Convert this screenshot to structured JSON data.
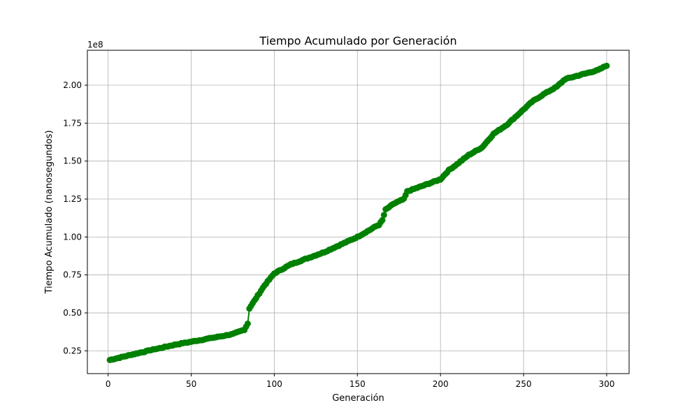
{
  "chart_data": {
    "type": "line",
    "title": "Tiempo Acumulado por Generación",
    "xlabel": "Generación",
    "ylabel": "Tiempo Acumulado (nanosegundos)",
    "y_multiplier_label": "1e8",
    "y_multiplier": 100000000,
    "xlim": [
      -12.5,
      313.5
    ],
    "ylim": [
      0.1,
      2.23
    ],
    "xticks": [
      0,
      50,
      100,
      150,
      200,
      250,
      300
    ],
    "xtick_labels": [
      "0",
      "50",
      "100",
      "150",
      "200",
      "250",
      "300"
    ],
    "yticks": [
      0.25,
      0.5,
      0.75,
      1.0,
      1.25,
      1.5,
      1.75,
      2.0
    ],
    "ytick_labels": [
      "0.25",
      "0.50",
      "0.75",
      "1.00",
      "1.25",
      "1.50",
      "1.75",
      "2.00"
    ],
    "grid": true,
    "series": [
      {
        "color": "#008000",
        "marker": "circle",
        "anchors_x": [
          1,
          20,
          40,
          60,
          75,
          82,
          84,
          85,
          88,
          91,
          94,
          97,
          100,
          110,
          120,
          130,
          140,
          150,
          158,
          161,
          163,
          165,
          167,
          172,
          176,
          178,
          180,
          190,
          200,
          205,
          210,
          217,
          225,
          232,
          240,
          246,
          255,
          262,
          270,
          275,
          285,
          295,
          300
        ],
        "anchors_y": [
          0.19,
          0.24,
          0.29,
          0.33,
          0.36,
          0.39,
          0.43,
          0.53,
          0.58,
          0.63,
          0.68,
          0.72,
          0.76,
          0.82,
          0.86,
          0.9,
          0.95,
          1.0,
          1.05,
          1.07,
          1.08,
          1.11,
          1.18,
          1.22,
          1.24,
          1.25,
          1.3,
          1.34,
          1.38,
          1.44,
          1.48,
          1.54,
          1.59,
          1.68,
          1.74,
          1.8,
          1.89,
          1.94,
          1.99,
          2.04,
          2.07,
          2.1,
          2.13
        ]
      }
    ]
  }
}
